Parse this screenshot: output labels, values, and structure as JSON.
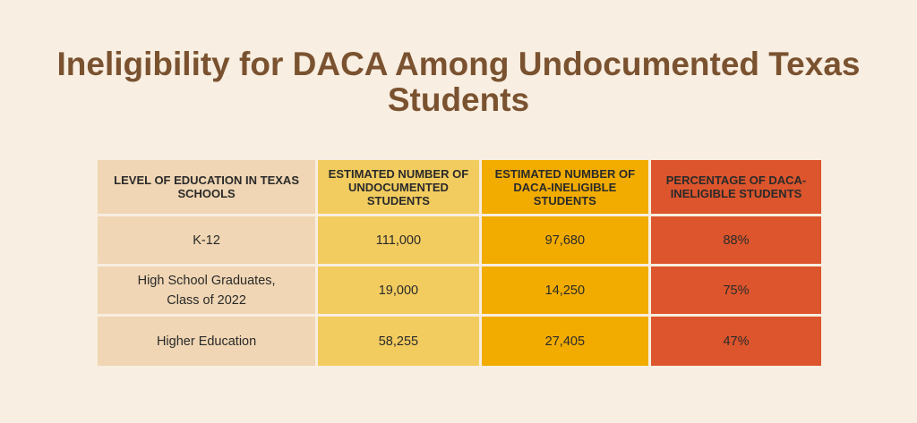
{
  "title": "Ineligibility for DACA Among Undocumented Texas Students",
  "colors": {
    "background": "#f8eee1",
    "title": "#7a5230",
    "col_level": "#f0d6b4",
    "col_undocumented": "#f2cc5f",
    "col_ineligible": "#f2ac00",
    "col_percentage": "#dc552c"
  },
  "chart_data": {
    "type": "table",
    "columns": [
      "LEVEL OF EDUCATION IN TEXAS SCHOOLS",
      "ESTIMATED NUMBER OF UNDOCUMENTED STUDENTS",
      "ESTIMATED NUMBER OF DACA-INELIGIBLE STUDENTS",
      "PERCENTAGE OF DACA-INELIGIBLE STUDENTS"
    ],
    "rows": [
      [
        "K-12",
        "111,000",
        "97,680",
        "88%"
      ],
      [
        "High School Graduates, Class of 2022",
        "19,000",
        "14,250",
        "75%"
      ],
      [
        "Higher Education",
        "58,255",
        "27,405",
        "47%"
      ]
    ]
  }
}
